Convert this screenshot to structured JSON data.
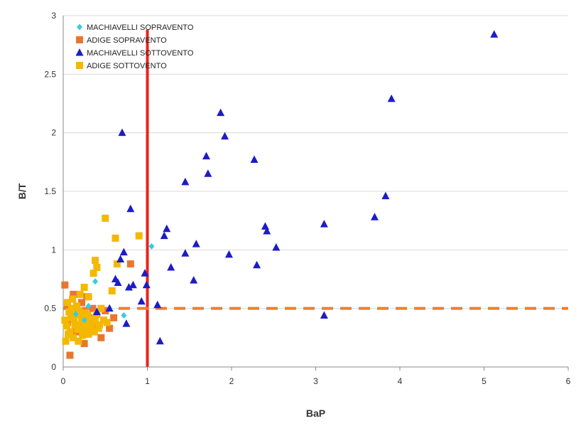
{
  "chart_data": {
    "type": "scatter",
    "title": "",
    "xlabel": "BaP",
    "ylabel": "B/T",
    "xlim": [
      0,
      6
    ],
    "ylim": [
      0,
      3
    ],
    "x_ticks": [
      "0",
      "1",
      "2",
      "3",
      "4",
      "5",
      "6"
    ],
    "y_ticks": [
      "0",
      "0.5",
      "1",
      "1.5",
      "2",
      "2.5",
      "3"
    ],
    "grid": "horizontal",
    "legend_placement": "top-left",
    "reference_lines": [
      {
        "orientation": "vertical",
        "value": 1,
        "color": "#e8241c",
        "style": "solid"
      },
      {
        "orientation": "horizontal",
        "value": 0.5,
        "color": "#f07d2c",
        "style": "dashed"
      }
    ],
    "series": [
      {
        "name": "MACHIAVELLI SOPRAVENTO",
        "marker": "diamond",
        "color": "#33ccee",
        "points": [
          [
            1.05,
            1.03
          ],
          [
            0.38,
            0.73
          ],
          [
            0.72,
            0.44
          ],
          [
            0.15,
            0.45
          ],
          [
            0.25,
            0.4
          ],
          [
            0.3,
            0.52
          ]
        ]
      },
      {
        "name": "ADIGE SOPRAVENTO",
        "marker": "square",
        "color": "#e8772e",
        "points": [
          [
            0.02,
            0.7
          ],
          [
            0.05,
            0.52
          ],
          [
            0.08,
            0.1
          ],
          [
            0.1,
            0.45
          ],
          [
            0.12,
            0.62
          ],
          [
            0.15,
            0.3
          ],
          [
            0.18,
            0.48
          ],
          [
            0.22,
            0.55
          ],
          [
            0.25,
            0.2
          ],
          [
            0.3,
            0.42
          ],
          [
            0.35,
            0.5
          ],
          [
            0.4,
            0.35
          ],
          [
            0.45,
            0.25
          ],
          [
            0.5,
            0.48
          ],
          [
            0.55,
            0.33
          ],
          [
            0.6,
            0.42
          ],
          [
            0.8,
            0.88
          ],
          [
            0.05,
            0.38
          ],
          [
            0.2,
            0.3
          ],
          [
            0.28,
            0.6
          ]
        ]
      },
      {
        "name": "MACHIAVELLI SOTTOVENTO",
        "marker": "triangle",
        "color": "#1c1cc8",
        "points": [
          [
            0.7,
            2.0
          ],
          [
            0.8,
            1.35
          ],
          [
            0.72,
            0.98
          ],
          [
            0.68,
            0.92
          ],
          [
            0.62,
            0.75
          ],
          [
            0.65,
            0.72
          ],
          [
            0.55,
            0.5
          ],
          [
            0.4,
            0.47
          ],
          [
            0.75,
            0.37
          ],
          [
            0.78,
            0.68
          ],
          [
            0.83,
            0.7
          ],
          [
            0.93,
            0.56
          ],
          [
            0.97,
            0.8
          ],
          [
            0.99,
            0.7
          ],
          [
            1.12,
            0.53
          ],
          [
            1.15,
            0.22
          ],
          [
            1.2,
            1.12
          ],
          [
            1.23,
            1.18
          ],
          [
            1.28,
            0.85
          ],
          [
            1.45,
            0.97
          ],
          [
            1.45,
            1.58
          ],
          [
            1.55,
            0.74
          ],
          [
            1.58,
            1.05
          ],
          [
            1.7,
            1.8
          ],
          [
            1.72,
            1.65
          ],
          [
            1.87,
            2.17
          ],
          [
            1.92,
            1.97
          ],
          [
            1.97,
            0.96
          ],
          [
            2.27,
            1.77
          ],
          [
            2.3,
            0.87
          ],
          [
            2.4,
            1.2
          ],
          [
            2.42,
            1.16
          ],
          [
            2.53,
            1.02
          ],
          [
            3.1,
            1.22
          ],
          [
            3.1,
            0.44
          ],
          [
            3.7,
            1.28
          ],
          [
            3.83,
            1.46
          ],
          [
            3.9,
            2.29
          ],
          [
            5.12,
            2.84
          ]
        ]
      },
      {
        "name": "ADIGE SOTTOVENTO",
        "marker": "square",
        "color": "#f5b800",
        "points": [
          [
            0.5,
            1.27
          ],
          [
            0.62,
            1.1
          ],
          [
            0.9,
            1.12
          ],
          [
            0.38,
            0.91
          ],
          [
            0.4,
            0.85
          ],
          [
            0.36,
            0.8
          ],
          [
            0.64,
            0.88
          ],
          [
            0.58,
            0.65
          ],
          [
            0.25,
            0.68
          ],
          [
            0.3,
            0.6
          ],
          [
            0.2,
            0.62
          ],
          [
            0.05,
            0.55
          ],
          [
            0.1,
            0.5
          ],
          [
            0.15,
            0.45
          ],
          [
            0.22,
            0.42
          ],
          [
            0.28,
            0.38
          ],
          [
            0.32,
            0.35
          ],
          [
            0.35,
            0.4
          ],
          [
            0.4,
            0.45
          ],
          [
            0.45,
            0.5
          ],
          [
            0.08,
            0.3
          ],
          [
            0.12,
            0.25
          ],
          [
            0.18,
            0.22
          ],
          [
            0.02,
            0.4
          ],
          [
            0.04,
            0.35
          ],
          [
            0.06,
            0.28
          ],
          [
            0.09,
            0.42
          ],
          [
            0.14,
            0.36
          ],
          [
            0.17,
            0.32
          ],
          [
            0.19,
            0.48
          ],
          [
            0.24,
            0.3
          ],
          [
            0.27,
            0.34
          ],
          [
            0.3,
            0.28
          ],
          [
            0.34,
            0.38
          ],
          [
            0.38,
            0.42
          ],
          [
            0.43,
            0.36
          ],
          [
            0.48,
            0.4
          ],
          [
            0.52,
            0.38
          ],
          [
            0.03,
            0.22
          ],
          [
            0.11,
            0.58
          ],
          [
            0.16,
            0.52
          ],
          [
            0.21,
            0.36
          ],
          [
            0.26,
            0.46
          ],
          [
            0.33,
            0.32
          ],
          [
            0.37,
            0.3
          ],
          [
            0.42,
            0.33
          ],
          [
            0.07,
            0.47
          ],
          [
            0.13,
            0.4
          ],
          [
            0.23,
            0.27
          ],
          [
            0.29,
            0.44
          ]
        ]
      }
    ]
  }
}
